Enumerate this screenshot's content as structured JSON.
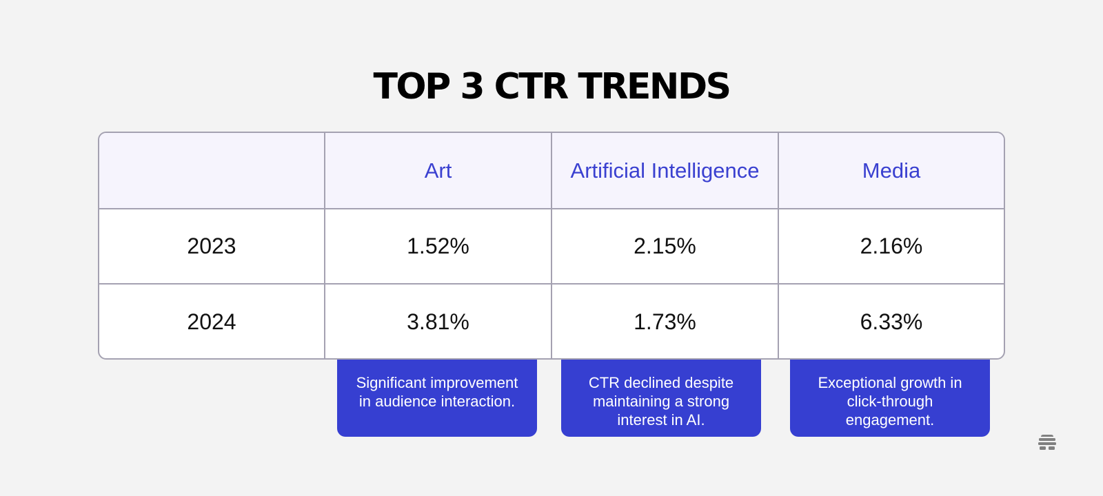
{
  "title": "TOP 3 CTR TRENDS",
  "chart_data": {
    "type": "table",
    "title": "TOP 3 CTR TRENDS",
    "columns": [
      "",
      "Art",
      "Artificial Intelligence",
      "Media"
    ],
    "rows": [
      {
        "label": "2023",
        "values": [
          "1.52%",
          "2.15%",
          "2.16%"
        ]
      },
      {
        "label": "2024",
        "values": [
          "3.81%",
          "1.73%",
          "6.33%"
        ]
      }
    ],
    "notes": [
      "Significant improvement in audience interaction.",
      "CTR declined despite maintaining a strong interest in AI.",
      "Exceptional growth in click-through engagement."
    ]
  },
  "colors": {
    "accent": "#363fd1",
    "header_text": "#3a40d0",
    "header_bg": "#f6f4fd",
    "border": "#a4a1b1",
    "background": "#f3f3f3"
  },
  "logo_icon": "beehive-icon"
}
